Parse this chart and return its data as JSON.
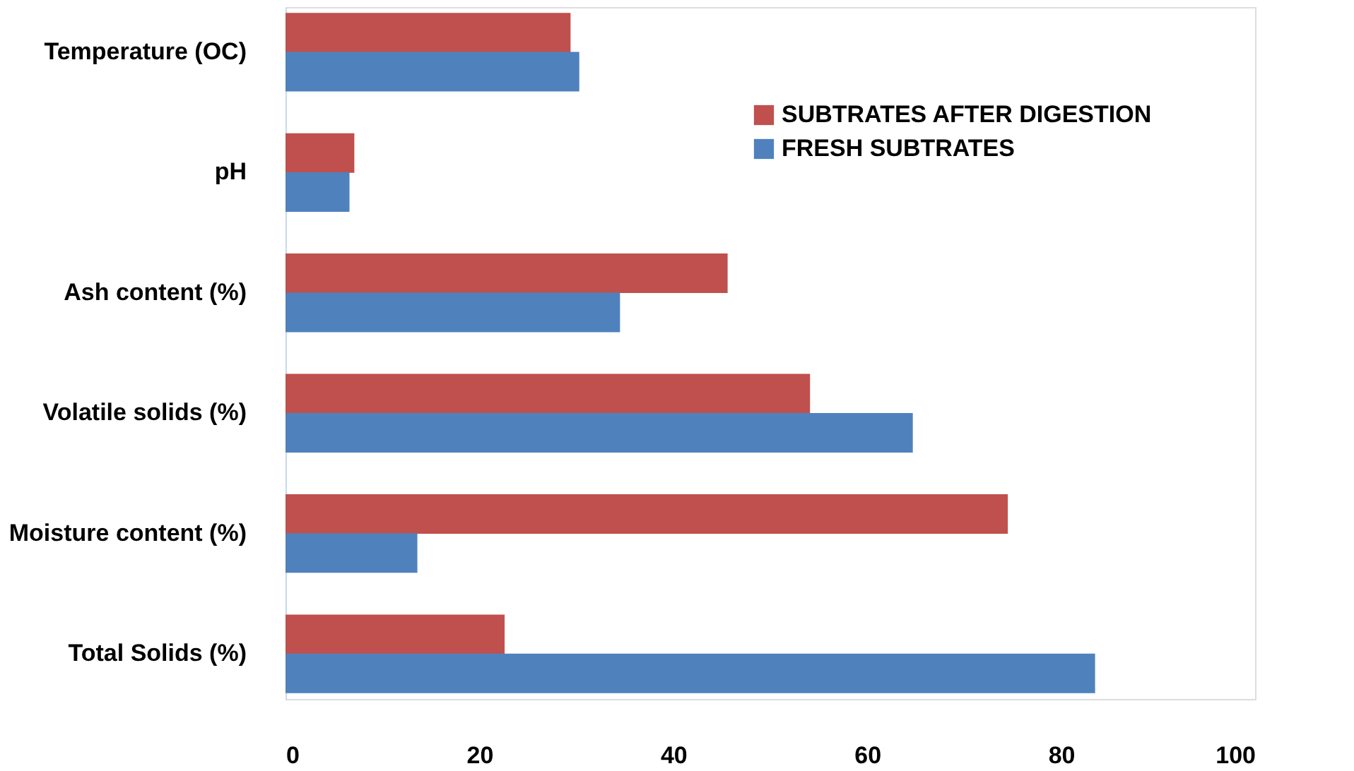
{
  "chart_data": {
    "type": "bar",
    "orientation": "horizontal",
    "categories": [
      "Temperature (OC)",
      "pH",
      "Ash content (%)",
      "Volatile solids (%)",
      "Moisture content (%)",
      "Total Solids (%)"
    ],
    "series": [
      {
        "name": "SUBTRATES AFTER DIGESTION",
        "color": "#c0504d",
        "values": [
          29.4,
          7.1,
          45.6,
          54.1,
          74.5,
          22.6
        ]
      },
      {
        "name": "FRESH SUBTRATES",
        "color": "#4f81bd",
        "values": [
          30.3,
          6.6,
          34.5,
          64.7,
          13.6,
          83.5
        ]
      }
    ],
    "xlim": [
      0,
      100
    ],
    "xticks": [
      0,
      20,
      40,
      60,
      80,
      100
    ],
    "grid": false,
    "legend": "top right"
  }
}
